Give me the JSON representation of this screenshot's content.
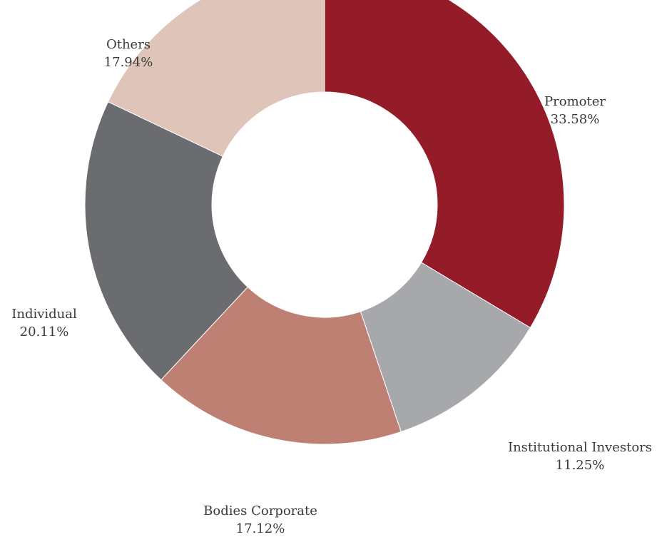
{
  "chart_data": {
    "type": "pie",
    "variant": "donut",
    "title": "",
    "slices": [
      {
        "label": "Promoter",
        "value_text": "33.58%",
        "value": 33.58,
        "color": "#931c28"
      },
      {
        "label": "Institutional Investors",
        "value_text": "11.25%",
        "value": 11.25,
        "color": "#a7a8ab"
      },
      {
        "label": "Bodies Corporate",
        "value_text": "17.12%",
        "value": 17.12,
        "color": "#bf8074"
      },
      {
        "label": "Individual",
        "value_text": "20.11%",
        "value": 20.11,
        "color": "#6b6c70"
      },
      {
        "label": "Others",
        "value_text": "17.94%",
        "value": 17.94,
        "color": "#dfc4ba"
      }
    ],
    "start_angle": "12 o'clock",
    "direction": "clockwise",
    "legend": "none (labels placed beside slices)"
  }
}
